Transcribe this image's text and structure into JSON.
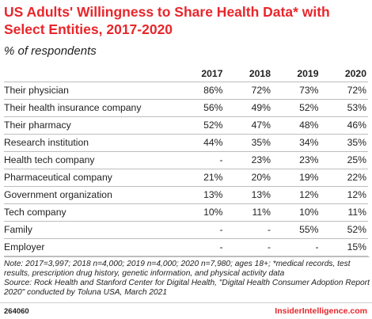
{
  "header": {
    "title": "US Adults' Willingness to Share Health Data* with Select Entities, 2017-2020",
    "subtitle": "% of respondents"
  },
  "chart_data": {
    "type": "table",
    "title": "US Adults' Willingness to Share Health Data* with Select Entities, 2017-2020",
    "subtitle": "% of respondents",
    "columns": [
      "2017",
      "2018",
      "2019",
      "2020"
    ],
    "rows": [
      {
        "label": "Their physician",
        "values": [
          "86%",
          "72%",
          "73%",
          "72%"
        ]
      },
      {
        "label": "Their health insurance company",
        "values": [
          "56%",
          "49%",
          "52%",
          "53%"
        ]
      },
      {
        "label": "Their pharmacy",
        "values": [
          "52%",
          "47%",
          "48%",
          "46%"
        ]
      },
      {
        "label": "Research institution",
        "values": [
          "44%",
          "35%",
          "34%",
          "35%"
        ]
      },
      {
        "label": "Health tech company",
        "values": [
          "-",
          "23%",
          "23%",
          "25%"
        ]
      },
      {
        "label": "Pharmaceutical company",
        "values": [
          "21%",
          "20%",
          "19%",
          "22%"
        ]
      },
      {
        "label": "Government organization",
        "values": [
          "13%",
          "13%",
          "12%",
          "12%"
        ]
      },
      {
        "label": "Tech company",
        "values": [
          "10%",
          "11%",
          "10%",
          "11%"
        ]
      },
      {
        "label": "Family",
        "values": [
          "-",
          "-",
          "55%",
          "52%"
        ]
      },
      {
        "label": "Employer",
        "values": [
          "-",
          "-",
          "-",
          "15%"
        ]
      }
    ]
  },
  "note": {
    "text": "Note: 2017=3,997; 2018 n=4,000; 2019 n=4,000; 2020 n=7,980; ages 18+; *medical records, test results, prescription drug history, genetic information, and physical activity data",
    "source": "Source: Rock Health and Stanford Center for Digital Health, \"Digital Health Consumer Adoption Report 2020\" conducted by Toluna USA, March 2021"
  },
  "footer": {
    "chart_id": "264060",
    "brand": "InsiderIntelligence.com"
  },
  "colors": {
    "accent": "#e8262b",
    "text": "#222222",
    "rule": "#bdbdbd"
  }
}
